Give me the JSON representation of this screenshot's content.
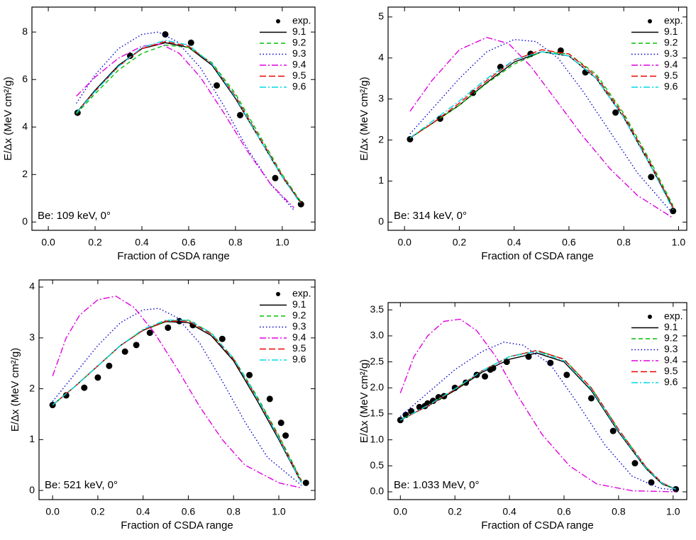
{
  "chart_data": [
    {
      "type": "line",
      "xlabel": "Fraction of CSDA range",
      "ylabel": "E/Δx (MeV cm²/g)",
      "annotation": "Be: 109 keV, 0°",
      "xlim": [
        -0.07,
        1.14
      ],
      "ylim": [
        -0.35,
        9.05
      ],
      "xticks": [
        {
          "value": 0,
          "label": "0.0"
        },
        0.2,
        0.4,
        0.6,
        0.8,
        {
          "value": 1,
          "label": "1.0"
        }
      ],
      "yticks": [
        0,
        2,
        4,
        6,
        8
      ],
      "series": [
        {
          "name": "exp.",
          "color": "#000000",
          "style": "points",
          "x": [
            0.125,
            0.35,
            0.5,
            0.61,
            0.72,
            0.82,
            0.97,
            1.08
          ],
          "values": [
            4.6,
            7.0,
            7.9,
            7.55,
            5.75,
            4.5,
            1.85,
            0.75
          ]
        },
        {
          "name": "9.1",
          "color": "#000000",
          "style": "solid",
          "x": [
            0.12,
            0.2,
            0.3,
            0.4,
            0.5,
            0.6,
            0.7,
            0.8,
            0.9,
            1.0,
            1.08
          ],
          "values": [
            4.6,
            5.55,
            6.6,
            7.3,
            7.55,
            7.35,
            6.6,
            5.2,
            3.55,
            1.9,
            0.8
          ]
        },
        {
          "name": "9.2",
          "color": "#00c000",
          "style": "dashed",
          "x": [
            0.12,
            0.2,
            0.3,
            0.4,
            0.5,
            0.6,
            0.7,
            0.8,
            0.9,
            1.0,
            1.08
          ],
          "values": [
            4.55,
            5.4,
            6.4,
            7.1,
            7.45,
            7.35,
            6.7,
            5.4,
            3.7,
            2.0,
            0.85
          ]
        },
        {
          "name": "9.3",
          "color": "#0000cc",
          "style": "dotted",
          "x": [
            0.12,
            0.2,
            0.3,
            0.4,
            0.47,
            0.55,
            0.65,
            0.75,
            0.85,
            0.95,
            1.05
          ],
          "values": [
            5.0,
            6.2,
            7.3,
            7.9,
            8.0,
            7.6,
            6.5,
            4.9,
            3.1,
            1.6,
            0.5
          ]
        },
        {
          "name": "9.4",
          "color": "#e000e0",
          "style": "dashdot",
          "x": [
            0.12,
            0.2,
            0.3,
            0.4,
            0.48,
            0.56,
            0.65,
            0.75,
            0.85,
            0.95,
            1.05
          ],
          "values": [
            5.3,
            6.1,
            6.9,
            7.4,
            7.5,
            7.1,
            6.1,
            4.6,
            3.0,
            1.6,
            0.6
          ]
        },
        {
          "name": "9.5",
          "color": "#ee0000",
          "style": "longdash",
          "x": [
            0.12,
            0.2,
            0.3,
            0.4,
            0.5,
            0.6,
            0.7,
            0.8,
            0.9,
            1.0,
            1.08
          ],
          "values": [
            4.6,
            5.5,
            6.55,
            7.3,
            7.6,
            7.4,
            6.65,
            5.3,
            3.6,
            1.95,
            0.8
          ]
        },
        {
          "name": "9.6",
          "color": "#00d8e8",
          "style": "dashdot",
          "x": [
            0.12,
            0.2,
            0.3,
            0.4,
            0.5,
            0.6,
            0.7,
            0.8,
            0.9,
            1.0,
            1.08
          ],
          "values": [
            4.6,
            5.5,
            6.55,
            7.35,
            7.65,
            7.45,
            6.65,
            5.25,
            3.55,
            1.9,
            0.75
          ]
        }
      ]
    },
    {
      "type": "line",
      "xlabel": "Fraction of CSDA range",
      "ylabel": "E/Δx (MeV cm²/g)",
      "annotation": "Be: 314 keV, 0°",
      "xlim": [
        -0.06,
        1.03
      ],
      "ylim": [
        -0.2,
        5.24
      ],
      "xticks": [
        {
          "value": 0,
          "label": "0.0"
        },
        0.2,
        0.4,
        0.6,
        0.8,
        {
          "value": 1,
          "label": "1.0"
        }
      ],
      "yticks": [
        0,
        1,
        2,
        3,
        4,
        5
      ],
      "series": [
        {
          "name": "exp.",
          "color": "#000000",
          "style": "points",
          "x": [
            0.02,
            0.13,
            0.25,
            0.35,
            0.46,
            0.57,
            0.66,
            0.77,
            0.9,
            0.98
          ],
          "values": [
            2.02,
            2.52,
            3.15,
            3.78,
            4.1,
            4.18,
            3.65,
            2.67,
            1.1,
            0.27
          ]
        },
        {
          "name": "9.1",
          "color": "#000000",
          "style": "solid",
          "x": [
            0.02,
            0.1,
            0.2,
            0.3,
            0.4,
            0.5,
            0.6,
            0.7,
            0.8,
            0.9,
            0.98
          ],
          "values": [
            2.05,
            2.4,
            2.85,
            3.4,
            3.9,
            4.15,
            4.05,
            3.5,
            2.55,
            1.35,
            0.35
          ]
        },
        {
          "name": "9.2",
          "color": "#00c000",
          "style": "dashed",
          "x": [
            0.02,
            0.1,
            0.2,
            0.3,
            0.4,
            0.5,
            0.6,
            0.7,
            0.8,
            0.9,
            0.98
          ],
          "values": [
            2.05,
            2.4,
            2.85,
            3.38,
            3.85,
            4.15,
            4.1,
            3.6,
            2.65,
            1.45,
            0.4
          ]
        },
        {
          "name": "9.3",
          "color": "#0000cc",
          "style": "dotted",
          "x": [
            0.02,
            0.1,
            0.2,
            0.3,
            0.4,
            0.48,
            0.56,
            0.65,
            0.75,
            0.85,
            0.98
          ],
          "values": [
            2.15,
            2.75,
            3.5,
            4.15,
            4.45,
            4.4,
            4.0,
            3.2,
            2.2,
            1.2,
            0.2
          ]
        },
        {
          "name": "9.4",
          "color": "#e000e0",
          "style": "dashdot",
          "x": [
            0.02,
            0.1,
            0.2,
            0.3,
            0.38,
            0.46,
            0.55,
            0.65,
            0.75,
            0.85,
            0.98
          ],
          "values": [
            2.7,
            3.45,
            4.2,
            4.5,
            4.35,
            3.8,
            3.0,
            2.1,
            1.3,
            0.65,
            0.1
          ]
        },
        {
          "name": "9.5",
          "color": "#ee0000",
          "style": "longdash",
          "x": [
            0.02,
            0.1,
            0.2,
            0.3,
            0.4,
            0.5,
            0.6,
            0.7,
            0.8,
            0.9,
            0.98
          ],
          "values": [
            2.05,
            2.4,
            2.9,
            3.45,
            3.95,
            4.2,
            4.1,
            3.55,
            2.6,
            1.4,
            0.35
          ]
        },
        {
          "name": "9.6",
          "color": "#00d8e8",
          "style": "dashdot",
          "x": [
            0.02,
            0.1,
            0.2,
            0.3,
            0.4,
            0.5,
            0.6,
            0.7,
            0.8,
            0.9,
            0.98
          ],
          "values": [
            2.05,
            2.45,
            2.95,
            3.5,
            3.95,
            4.15,
            4.05,
            3.5,
            2.55,
            1.35,
            0.3
          ]
        }
      ]
    },
    {
      "type": "line",
      "xlabel": "Fraction of CSDA range",
      "ylabel": "E/Δx (MeV cm²/g)",
      "annotation": "Be: 521 keV, 0°",
      "xlim": [
        -0.06,
        1.16
      ],
      "ylim": [
        -0.18,
        4.14
      ],
      "xticks": [
        {
          "value": 0,
          "label": "0.0"
        },
        0.2,
        0.4,
        0.6,
        0.8,
        {
          "value": 1,
          "label": "1.0"
        }
      ],
      "yticks": [
        0,
        1,
        2,
        3,
        4
      ],
      "series": [
        {
          "name": "exp.",
          "color": "#000000",
          "style": "points",
          "x": [
            0,
            0.06,
            0.14,
            0.2,
            0.25,
            0.32,
            0.37,
            0.43,
            0.51,
            0.56,
            0.62,
            0.75,
            0.87,
            0.96,
            1.01,
            1.03,
            1.12
          ],
          "values": [
            1.68,
            1.87,
            2.02,
            2.22,
            2.45,
            2.73,
            2.86,
            3.1,
            3.2,
            3.33,
            3.25,
            2.98,
            2.27,
            1.8,
            1.33,
            1.08,
            0.15
          ]
        },
        {
          "name": "9.1",
          "color": "#000000",
          "style": "solid",
          "x": [
            0,
            0.1,
            0.2,
            0.3,
            0.4,
            0.5,
            0.6,
            0.7,
            0.8,
            0.9,
            1.0,
            1.1
          ],
          "values": [
            1.68,
            2.05,
            2.45,
            2.85,
            3.15,
            3.32,
            3.3,
            3.05,
            2.55,
            1.8,
            1.0,
            0.15
          ]
        },
        {
          "name": "9.2",
          "color": "#00c000",
          "style": "dashed",
          "x": [
            0,
            0.1,
            0.2,
            0.3,
            0.4,
            0.5,
            0.6,
            0.7,
            0.8,
            0.9,
            1.0,
            1.1
          ],
          "values": [
            1.68,
            2.05,
            2.45,
            2.85,
            3.15,
            3.33,
            3.35,
            3.1,
            2.6,
            1.88,
            1.08,
            0.2
          ]
        },
        {
          "name": "9.3",
          "color": "#0000cc",
          "style": "dotted",
          "x": [
            0,
            0.1,
            0.2,
            0.3,
            0.4,
            0.47,
            0.55,
            0.65,
            0.75,
            0.85,
            0.95,
            1.1
          ],
          "values": [
            1.75,
            2.3,
            2.85,
            3.3,
            3.55,
            3.58,
            3.4,
            2.9,
            2.15,
            1.35,
            0.65,
            0.1
          ]
        },
        {
          "name": "9.4",
          "color": "#e000e0",
          "style": "dashdot",
          "x": [
            0,
            0.06,
            0.12,
            0.2,
            0.28,
            0.36,
            0.45,
            0.55,
            0.65,
            0.75,
            0.85,
            1.0,
            1.1
          ],
          "values": [
            2.25,
            3.0,
            3.45,
            3.75,
            3.82,
            3.6,
            3.1,
            2.4,
            1.65,
            1.0,
            0.5,
            0.15,
            0.05
          ]
        },
        {
          "name": "9.5",
          "color": "#ee0000",
          "style": "longdash",
          "x": [
            0,
            0.1,
            0.2,
            0.3,
            0.4,
            0.5,
            0.6,
            0.7,
            0.8,
            0.9,
            1.0,
            1.1
          ],
          "values": [
            1.68,
            2.05,
            2.45,
            2.85,
            3.15,
            3.33,
            3.33,
            3.08,
            2.58,
            1.85,
            1.05,
            0.18
          ]
        },
        {
          "name": "9.6",
          "color": "#00d8e8",
          "style": "dashdot",
          "x": [
            0,
            0.1,
            0.2,
            0.3,
            0.4,
            0.5,
            0.6,
            0.7,
            0.8,
            0.9,
            1.0,
            1.1
          ],
          "values": [
            1.68,
            2.05,
            2.45,
            2.85,
            3.17,
            3.35,
            3.35,
            3.1,
            2.6,
            1.85,
            1.03,
            0.15
          ]
        }
      ]
    },
    {
      "type": "line",
      "xlabel": "Fraction of CSDA range",
      "ylabel": "E/Δx (MeV cm²/g)",
      "annotation": "Be: 1.033 MeV, 0°",
      "xlim": [
        -0.045,
        1.05
      ],
      "ylim": [
        -0.15,
        3.64
      ],
      "xticks": [
        {
          "value": 0,
          "label": "0.0"
        },
        0.2,
        0.4,
        0.6,
        0.8,
        {
          "value": 1,
          "label": "1.0"
        }
      ],
      "yticks": [
        {
          "value": 0,
          "label": "0.0"
        },
        0.5,
        {
          "value": 1,
          "label": "1.0"
        },
        1.5,
        {
          "value": 2,
          "label": "2.0"
        },
        2.5,
        {
          "value": 3,
          "label": "3.0"
        },
        3.5
      ],
      "series": [
        {
          "name": "exp.",
          "color": "#000000",
          "style": "points",
          "x": [
            0,
            0.02,
            0.04,
            0.07,
            0.09,
            0.1,
            0.12,
            0.14,
            0.16,
            0.2,
            0.24,
            0.28,
            0.31,
            0.33,
            0.34,
            0.39,
            0.47,
            0.55,
            0.61,
            0.7,
            0.78,
            0.86,
            0.92,
            1.01
          ],
          "values": [
            1.38,
            1.48,
            1.55,
            1.63,
            1.65,
            1.7,
            1.75,
            1.82,
            1.84,
            2.0,
            2.1,
            2.25,
            2.22,
            2.35,
            2.38,
            2.5,
            2.6,
            2.48,
            2.25,
            1.8,
            1.17,
            0.55,
            0.18,
            0.05
          ]
        },
        {
          "name": "9.1",
          "color": "#000000",
          "style": "solid",
          "x": [
            0,
            0.1,
            0.2,
            0.3,
            0.4,
            0.5,
            0.6,
            0.7,
            0.8,
            0.9,
            0.96,
            1.01
          ],
          "values": [
            1.38,
            1.65,
            1.95,
            2.3,
            2.55,
            2.67,
            2.5,
            1.95,
            1.15,
            0.45,
            0.15,
            0.05
          ]
        },
        {
          "name": "9.2",
          "color": "#00c000",
          "style": "dashed",
          "x": [
            0,
            0.1,
            0.2,
            0.3,
            0.4,
            0.5,
            0.6,
            0.7,
            0.8,
            0.9,
            0.96,
            1.01
          ],
          "values": [
            1.38,
            1.65,
            1.97,
            2.33,
            2.6,
            2.72,
            2.55,
            2.0,
            1.2,
            0.48,
            0.17,
            0.05
          ]
        },
        {
          "name": "9.3",
          "color": "#0000cc",
          "style": "dotted",
          "x": [
            0,
            0.1,
            0.2,
            0.3,
            0.38,
            0.45,
            0.55,
            0.65,
            0.75,
            0.85,
            0.95,
            1.01
          ],
          "values": [
            1.45,
            1.9,
            2.35,
            2.7,
            2.88,
            2.82,
            2.45,
            1.7,
            0.9,
            0.3,
            0.07,
            0.03
          ]
        },
        {
          "name": "9.4",
          "color": "#e000e0",
          "style": "dashdot",
          "x": [
            0,
            0.05,
            0.1,
            0.16,
            0.22,
            0.28,
            0.35,
            0.43,
            0.52,
            0.62,
            0.72,
            0.85,
            1.01
          ],
          "values": [
            1.9,
            2.6,
            3.0,
            3.28,
            3.32,
            3.1,
            2.6,
            1.85,
            1.1,
            0.5,
            0.15,
            0.02,
            0
          ]
        },
        {
          "name": "9.5",
          "color": "#ee0000",
          "style": "longdash",
          "x": [
            0,
            0.1,
            0.2,
            0.3,
            0.4,
            0.5,
            0.6,
            0.7,
            0.8,
            0.9,
            0.96,
            1.01
          ],
          "values": [
            1.38,
            1.65,
            1.97,
            2.33,
            2.6,
            2.72,
            2.55,
            2.0,
            1.2,
            0.48,
            0.17,
            0.05
          ]
        },
        {
          "name": "9.6",
          "color": "#00d8e8",
          "style": "dashdot",
          "x": [
            0,
            0.1,
            0.2,
            0.3,
            0.4,
            0.5,
            0.6,
            0.7,
            0.8,
            0.9,
            0.96,
            1.01
          ],
          "values": [
            1.38,
            1.66,
            1.98,
            2.33,
            2.6,
            2.7,
            2.52,
            1.97,
            1.17,
            0.46,
            0.16,
            0.05
          ]
        }
      ]
    }
  ]
}
